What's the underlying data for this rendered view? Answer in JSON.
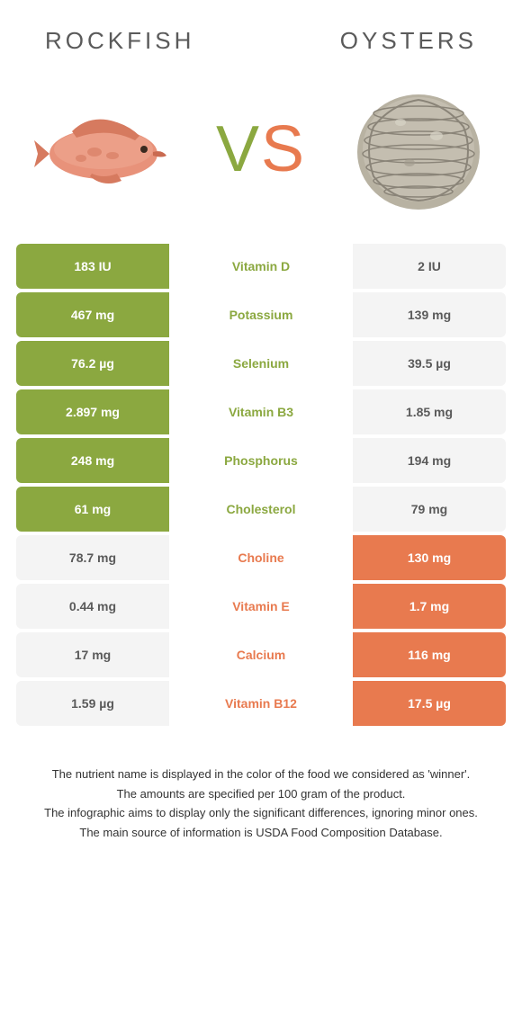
{
  "header": {
    "left_title": "ROCKFISH",
    "right_title": "OYSTERS"
  },
  "vs": {
    "v": "V",
    "s": "S"
  },
  "colors": {
    "left_color": "#8ba840",
    "right_color": "#e87a4f",
    "neutral_bg": "#f4f4f4",
    "neutral_text": "#5a5a5a"
  },
  "nutrients": [
    {
      "name": "Vitamin D",
      "left": "183 IU",
      "right": "2 IU",
      "winner": "left"
    },
    {
      "name": "Potassium",
      "left": "467 mg",
      "right": "139 mg",
      "winner": "left"
    },
    {
      "name": "Selenium",
      "left": "76.2 µg",
      "right": "39.5 µg",
      "winner": "left"
    },
    {
      "name": "Vitamin B3",
      "left": "2.897 mg",
      "right": "1.85 mg",
      "winner": "left"
    },
    {
      "name": "Phosphorus",
      "left": "248 mg",
      "right": "194 mg",
      "winner": "left"
    },
    {
      "name": "Cholesterol",
      "left": "61 mg",
      "right": "79 mg",
      "winner": "left"
    },
    {
      "name": "Choline",
      "left": "78.7 mg",
      "right": "130 mg",
      "winner": "right"
    },
    {
      "name": "Vitamin E",
      "left": "0.44 mg",
      "right": "1.7 mg",
      "winner": "right"
    },
    {
      "name": "Calcium",
      "left": "17 mg",
      "right": "116 mg",
      "winner": "right"
    },
    {
      "name": "Vitamin B12",
      "left": "1.59 µg",
      "right": "17.5 µg",
      "winner": "right"
    }
  ],
  "footnotes": [
    "The nutrient name is displayed in the color of the food we considered as 'winner'.",
    "The amounts are specified per 100 gram of the product.",
    "The infographic aims to display only the significant differences, ignoring minor ones.",
    "The main source of information is USDA Food Composition Database."
  ]
}
